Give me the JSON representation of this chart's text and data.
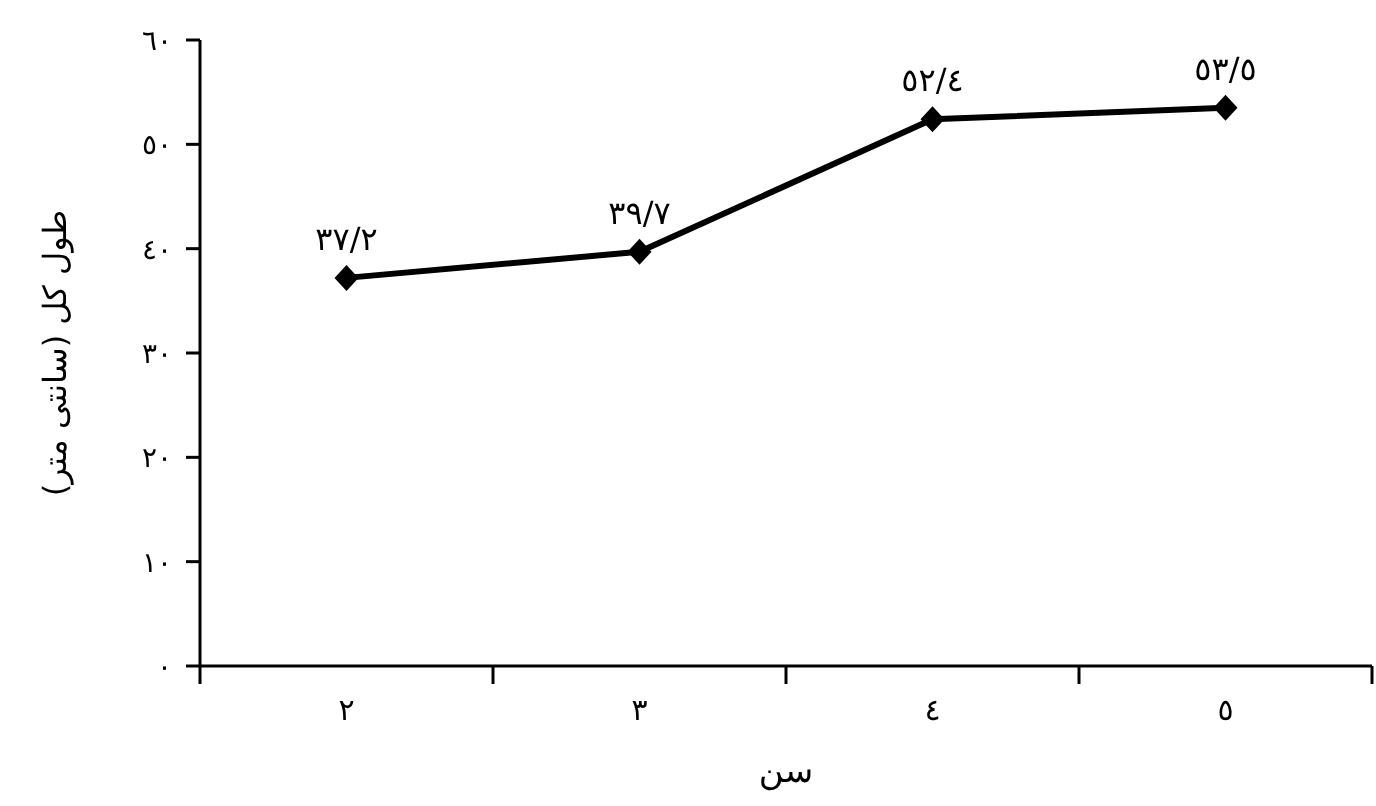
{
  "chart_data": {
    "type": "line",
    "xlabel": "سن",
    "ylabel": "طول کل (سانتی متر)",
    "categories": [
      "٢",
      "٣",
      "٤",
      "٥"
    ],
    "series": [
      {
        "color": "#000000",
        "values": [
          37.2,
          39.7,
          52.4,
          53.5
        ],
        "value_labels": [
          "٣٧/٢",
          "٣٩/٧",
          "٥٢/٤",
          "٥٣/٥"
        ]
      }
    ],
    "ylim": [
      0,
      60
    ],
    "yticks": [
      {
        "value": 0,
        "label": "٠"
      },
      {
        "value": 10,
        "label": "١٠"
      },
      {
        "value": 20,
        "label": "٢٠"
      },
      {
        "value": 30,
        "label": "٣٠"
      },
      {
        "value": 40,
        "label": "٤٠"
      },
      {
        "value": 50,
        "label": "٥٠"
      },
      {
        "value": 60,
        "label": "٦٠"
      }
    ],
    "marker": "diamond",
    "line_style": "solid"
  }
}
